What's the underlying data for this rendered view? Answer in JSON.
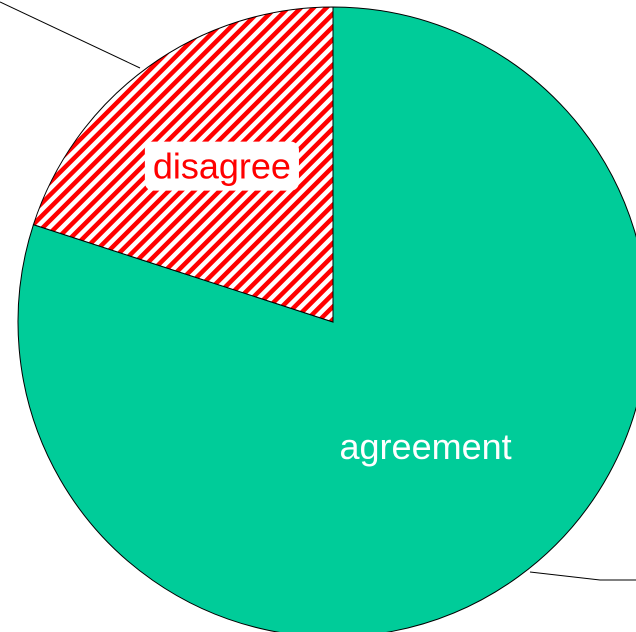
{
  "chart_data": {
    "type": "pie",
    "categories": [
      "agreement",
      "disagree"
    ],
    "values": [
      80,
      20
    ],
    "colors": [
      "#00cc99",
      "#ff0000"
    ],
    "patterns": [
      "solid",
      "stripes"
    ],
    "label_colors": [
      "#ffffff",
      "#ff0000"
    ]
  }
}
